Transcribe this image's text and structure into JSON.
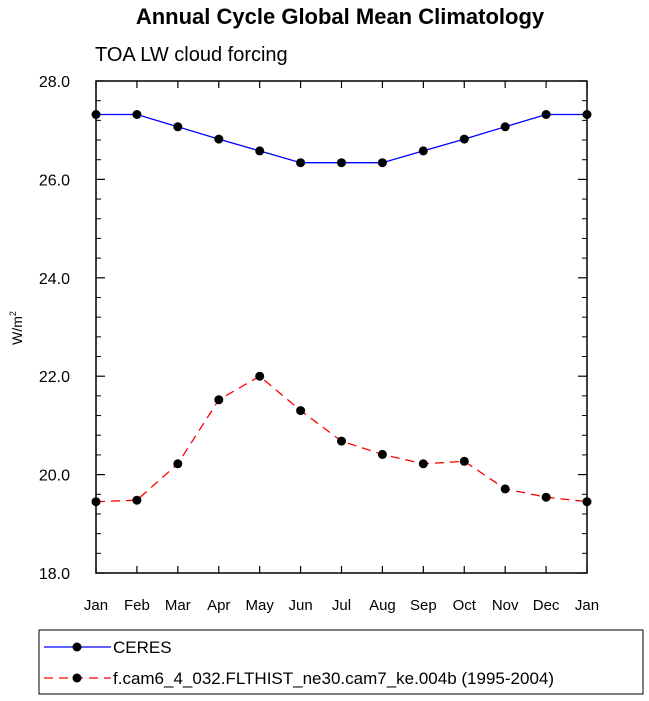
{
  "chart_data": {
    "type": "line",
    "title": "Annual Cycle Global Mean Climatology",
    "subtitle": "TOA LW cloud forcing",
    "ylabel": "W/m",
    "ylabel_superscript": "2",
    "ylim": [
      18.0,
      28.0
    ],
    "yticks": [
      "18.0",
      "20.0",
      "22.0",
      "24.0",
      "26.0",
      "28.0"
    ],
    "ytick_values": [
      18.0,
      20.0,
      22.0,
      24.0,
      26.0,
      28.0
    ],
    "categories": [
      "Jan",
      "Feb",
      "Mar",
      "Apr",
      "May",
      "Jun",
      "Jul",
      "Aug",
      "Sep",
      "Oct",
      "Nov",
      "Dec",
      "Jan"
    ],
    "grid": false,
    "legend_position": "bottom",
    "series": [
      {
        "name": "CERES",
        "color": "#0000ff",
        "dash": "solid",
        "values": [
          27.32,
          27.32,
          27.07,
          26.82,
          26.58,
          26.34,
          26.34,
          26.34,
          26.58,
          26.82,
          27.07,
          27.32,
          27.32
        ]
      },
      {
        "name": "f.cam6_4_032.FLTHIST_ne30.cam7_ke.004b (1995-2004)",
        "color": "#ff0000",
        "dash": "dashed",
        "values": [
          19.45,
          19.48,
          20.22,
          21.52,
          22.0,
          21.3,
          20.68,
          20.41,
          20.22,
          20.27,
          19.71,
          19.54,
          19.45
        ]
      }
    ]
  }
}
